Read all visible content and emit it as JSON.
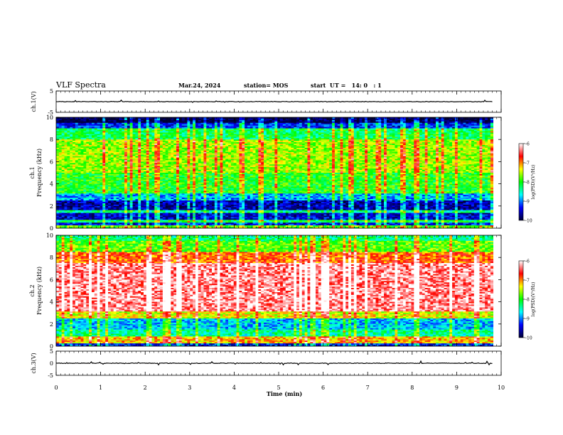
{
  "header": {
    "title": "VLF Spectra",
    "date": "Mar.24, 2024",
    "station": "station= MOS",
    "start": "start  UT =   14: 0   : 1"
  },
  "colorbar": {
    "label": "log(PSD)(V²/Hz)",
    "ticks": [
      "-6",
      "-7",
      "-8",
      "-9",
      "-10"
    ],
    "colors": [
      "#ffffff",
      "#ff0000",
      "#ffff00",
      "#00ff00",
      "#00ffff",
      "#0000ff",
      "#000033"
    ]
  },
  "chart_data": [
    {
      "type": "line",
      "panel": "ch1-voltage",
      "ylabel": "ch.1(V)",
      "ylim": [
        -5,
        5
      ],
      "yticks": [
        "5",
        "-5"
      ],
      "series": [
        {
          "x": [
            0,
            9.82
          ],
          "y": [
            0,
            0
          ]
        }
      ],
      "xlim": [
        0,
        10
      ]
    },
    {
      "type": "heatmap",
      "panel": "ch1-spectrogram",
      "ylabel": "ch.1\nFrequency (kHz)",
      "ylim": [
        0,
        10
      ],
      "yticks": [
        "0",
        "2",
        "4",
        "6",
        "8",
        "10"
      ],
      "xlim": [
        0,
        10
      ],
      "data_extent_min": 9.82,
      "clim": [
        -10,
        -6
      ],
      "bands": [
        {
          "from": 0.0,
          "to": 0.25,
          "level": -7.8
        },
        {
          "from": 0.25,
          "to": 0.55,
          "level": -9.4
        },
        {
          "from": 0.55,
          "to": 0.75,
          "level": -8.2
        },
        {
          "from": 0.75,
          "to": 1.4,
          "level": -9.5
        },
        {
          "from": 1.4,
          "to": 1.6,
          "level": -8.4
        },
        {
          "from": 1.6,
          "to": 2.5,
          "level": -9.6
        },
        {
          "from": 2.5,
          "to": 3.1,
          "level": -8.9
        },
        {
          "from": 3.1,
          "to": 5.0,
          "level": -8.0
        },
        {
          "from": 5.0,
          "to": 8.0,
          "level": -7.6
        },
        {
          "from": 8.0,
          "to": 9.0,
          "level": -8.2
        },
        {
          "from": 9.0,
          "to": 9.5,
          "level": -9.3
        },
        {
          "from": 9.5,
          "to": 10.0,
          "level": -10.0
        }
      ]
    },
    {
      "type": "heatmap",
      "panel": "ch2-spectrogram",
      "ylabel": "ch.2\nFrequency (kHz)",
      "ylim": [
        0,
        10
      ],
      "yticks": [
        "0",
        "2",
        "4",
        "6",
        "8",
        "10"
      ],
      "xlim": [
        0,
        10
      ],
      "data_extent_min": 9.82,
      "clim": [
        -10,
        -6
      ],
      "bands": [
        {
          "from": 0.0,
          "to": 0.3,
          "level": -9.3
        },
        {
          "from": 0.3,
          "to": 0.9,
          "level": -7.2
        },
        {
          "from": 0.9,
          "to": 1.5,
          "level": -8.4
        },
        {
          "from": 1.5,
          "to": 2.5,
          "level": -8.8
        },
        {
          "from": 2.5,
          "to": 3.1,
          "level": -7.4
        },
        {
          "from": 3.1,
          "to": 7.5,
          "level": -6.3
        },
        {
          "from": 7.5,
          "to": 8.5,
          "level": -6.9
        },
        {
          "from": 8.5,
          "to": 9.5,
          "level": -7.8
        },
        {
          "from": 9.5,
          "to": 10.0,
          "level": -8.3
        }
      ]
    },
    {
      "type": "line",
      "panel": "ch3-voltage",
      "ylabel": "ch.3(V)",
      "ylim": [
        -5,
        5
      ],
      "yticks": [
        "5",
        "0",
        "-5"
      ],
      "series": [
        {
          "x": [
            0,
            9.82
          ],
          "y": [
            0,
            0
          ]
        }
      ],
      "xlim": [
        0,
        10
      ],
      "xlabel": "Time (min)",
      "xticks": [
        "0",
        "1",
        "2",
        "3",
        "4",
        "5",
        "6",
        "7",
        "8",
        "9",
        "10"
      ]
    }
  ]
}
